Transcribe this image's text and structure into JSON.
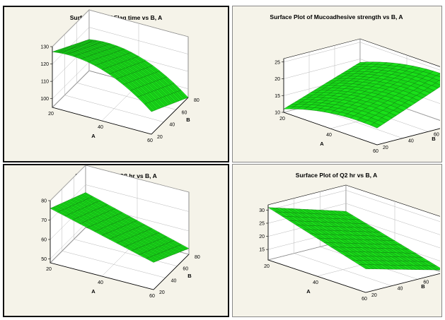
{
  "chart_data": [
    {
      "type": "surface",
      "title": "Surface Plot of Flag time vs B, A",
      "xlabel": "A",
      "ylabel": "B",
      "zlabel": "",
      "x_ticks": [
        "20",
        "40",
        "60"
      ],
      "y_ticks": [
        "20",
        "40",
        "60",
        "80"
      ],
      "z_ticks": [
        "100",
        "110",
        "120",
        "130"
      ],
      "xlim": [
        20,
        60
      ],
      "ylim": [
        20,
        80
      ],
      "zlim": [
        95,
        130
      ],
      "corners": {
        "A20_B20": 127,
        "A60_B20": 108,
        "A20_B80": 113,
        "A60_B80": 95
      },
      "curvature": 2,
      "surface_color": "#19b919"
    },
    {
      "type": "surface",
      "title": "Surface Plot of Mucoadhesive strength vs B, A",
      "xlabel": "A",
      "ylabel": "B",
      "zlabel": "",
      "x_ticks": [
        "20",
        "40",
        "60"
      ],
      "y_ticks": [
        "20",
        "40",
        "60",
        "80"
      ],
      "z_ticks": [
        "10",
        "15",
        "20",
        "25"
      ],
      "xlim": [
        20,
        60
      ],
      "ylim": [
        20,
        80
      ],
      "zlim": [
        10,
        26
      ],
      "corners": {
        "A20_B20": 11,
        "A60_B20": 15,
        "A20_B80": 19,
        "A60_B80": 24
      },
      "curvature": 1,
      "surface_color": "#19b919"
    },
    {
      "type": "surface",
      "title": "Surface Plot of Q8 hr vs B, A",
      "xlabel": "A",
      "ylabel": "B",
      "zlabel": "",
      "x_ticks": [
        "20",
        "40",
        "60"
      ],
      "y_ticks": [
        "20",
        "40",
        "60",
        "80"
      ],
      "z_ticks": [
        "50",
        "60",
        "70",
        "80"
      ],
      "xlim": [
        20,
        60
      ],
      "ylim": [
        20,
        80
      ],
      "zlim": [
        48,
        80
      ],
      "corners": {
        "A20_B20": 76,
        "A60_B20": 62,
        "A20_B80": 66,
        "A60_B80": 51
      },
      "curvature": 0,
      "surface_color": "#19b919"
    },
    {
      "type": "surface",
      "title": "Surface Plot of Q2 hr vs B, A",
      "xlabel": "A",
      "ylabel": "B",
      "zlabel": "",
      "x_ticks": [
        "20",
        "40",
        "60"
      ],
      "y_ticks": [
        "20",
        "40",
        "60",
        "80"
      ],
      "z_ticks": [
        "15",
        "20",
        "25",
        "30"
      ],
      "xlim": [
        20,
        60
      ],
      "ylim": [
        20,
        80
      ],
      "zlim": [
        11,
        32
      ],
      "corners": {
        "A20_B20": 31,
        "A60_B20": 20,
        "A20_B80": 22,
        "A60_B80": 12
      },
      "curvature": 0,
      "surface_color": "#19b919"
    }
  ]
}
